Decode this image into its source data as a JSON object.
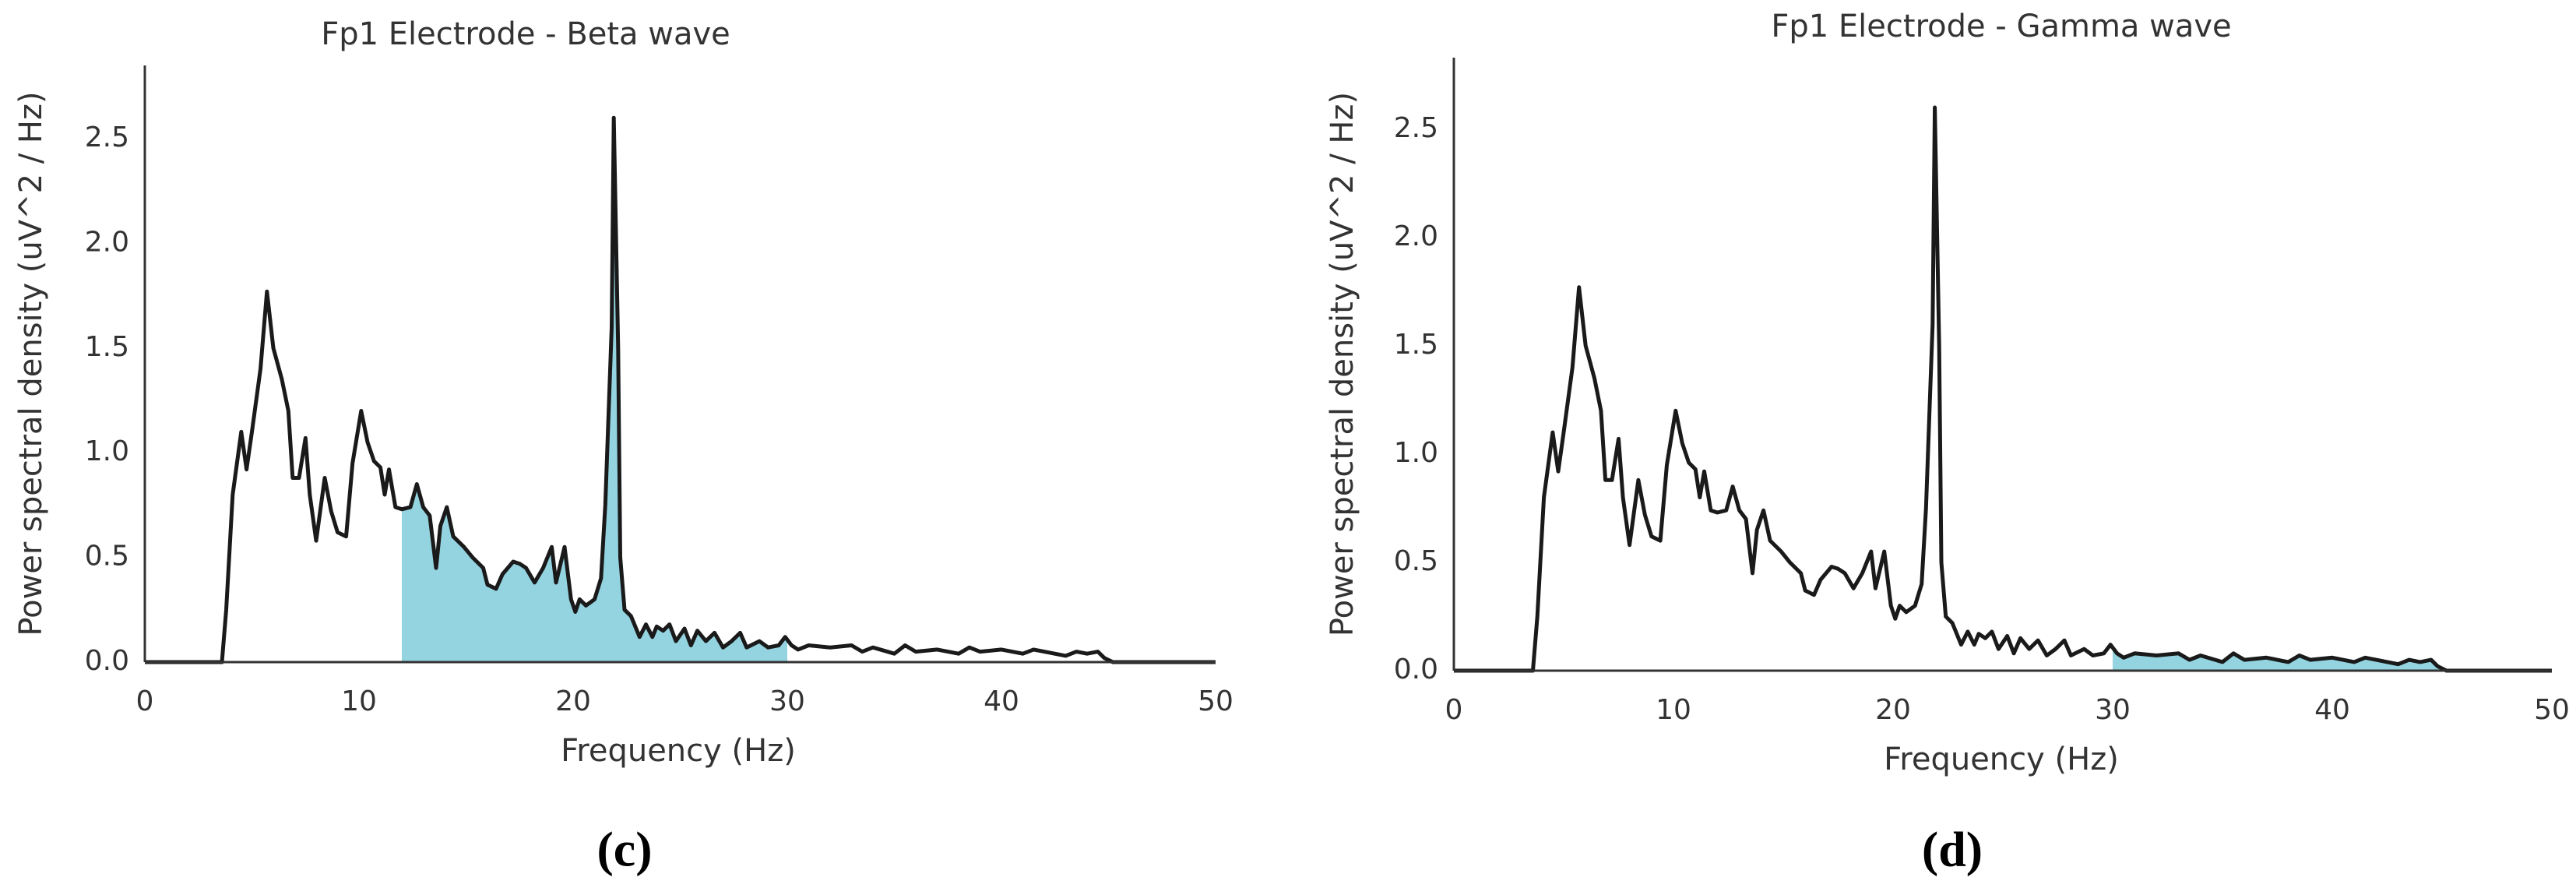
{
  "chart_data": [
    {
      "type": "line",
      "title": "Fp1 Electrode - Beta wave",
      "xlabel": "Frequency (Hz)",
      "ylabel": "Power spectral density (uV^2 / Hz)",
      "caption": "(c)",
      "x": [
        0,
        3.6,
        3.8,
        4.1,
        4.5,
        4.75,
        5.0,
        5.4,
        5.7,
        6.0,
        6.4,
        6.7,
        6.9,
        7.2,
        7.5,
        7.7,
        8.0,
        8.4,
        8.7,
        9.0,
        9.4,
        9.7,
        10.1,
        10.4,
        10.7,
        11.0,
        11.2,
        11.4,
        11.7,
        12.0,
        12.4,
        12.7,
        13.0,
        13.3,
        13.6,
        13.8,
        14.1,
        14.4,
        14.9,
        15.3,
        15.8,
        16.0,
        16.4,
        16.7,
        17.2,
        17.5,
        17.8,
        18.2,
        18.6,
        19.0,
        19.2,
        19.6,
        19.9,
        20.1,
        20.3,
        20.6,
        21.0,
        21.3,
        21.5,
        21.8,
        21.9,
        22.1,
        22.2,
        22.4,
        22.7,
        23.1,
        23.4,
        23.7,
        23.9,
        24.2,
        24.5,
        24.8,
        25.2,
        25.5,
        25.8,
        26.2,
        26.6,
        27.0,
        27.4,
        27.8,
        28.1,
        28.7,
        29.1,
        29.6,
        29.9,
        30.2,
        30.5,
        31,
        32,
        33,
        33.5,
        34,
        35,
        35.5,
        36,
        37,
        38,
        38.5,
        39,
        40,
        41,
        41.5,
        42,
        43,
        43.5,
        44,
        44.5,
        44.8,
        45.2,
        50
      ],
      "values": [
        0,
        0,
        0.25,
        0.8,
        1.1,
        0.92,
        1.1,
        1.4,
        1.77,
        1.5,
        1.35,
        1.2,
        0.88,
        0.88,
        1.07,
        0.8,
        0.58,
        0.88,
        0.72,
        0.62,
        0.6,
        0.95,
        1.2,
        1.05,
        0.96,
        0.93,
        0.8,
        0.92,
        0.74,
        0.73,
        0.74,
        0.85,
        0.74,
        0.7,
        0.45,
        0.65,
        0.74,
        0.6,
        0.55,
        0.5,
        0.45,
        0.37,
        0.35,
        0.42,
        0.48,
        0.47,
        0.45,
        0.38,
        0.45,
        0.55,
        0.38,
        0.55,
        0.3,
        0.24,
        0.3,
        0.27,
        0.3,
        0.4,
        0.75,
        1.6,
        2.6,
        1.5,
        0.5,
        0.25,
        0.22,
        0.12,
        0.18,
        0.12,
        0.17,
        0.15,
        0.18,
        0.1,
        0.16,
        0.08,
        0.15,
        0.1,
        0.14,
        0.07,
        0.1,
        0.14,
        0.07,
        0.1,
        0.07,
        0.08,
        0.12,
        0.08,
        0.06,
        0.08,
        0.07,
        0.08,
        0.05,
        0.07,
        0.04,
        0.08,
        0.05,
        0.06,
        0.04,
        0.07,
        0.05,
        0.06,
        0.04,
        0.06,
        0.05,
        0.03,
        0.05,
        0.04,
        0.05,
        0.02,
        0,
        0
      ],
      "color": "#1a1a1a",
      "band": [
        12,
        30
      ],
      "band_color": "#94d4e0",
      "xlim": [
        0,
        50
      ],
      "xticks": [
        0,
        10,
        20,
        30,
        40,
        50
      ],
      "ylim": [
        0,
        2.85
      ],
      "yticks": [
        {
          "value": 0,
          "label": "0.0"
        },
        0.5,
        {
          "value": 1,
          "label": "1.0"
        },
        1.5,
        {
          "value": 2,
          "label": "2.0"
        },
        2.5
      ],
      "grid": false
    },
    {
      "type": "line",
      "title": "Fp1 Electrode - Gamma wave",
      "xlabel": "Frequency (Hz)",
      "ylabel": "Power spectral density (uV^2 / Hz)",
      "caption": "(d)",
      "x": [
        0,
        3.6,
        3.8,
        4.1,
        4.5,
        4.75,
        5.0,
        5.4,
        5.7,
        6.0,
        6.4,
        6.7,
        6.9,
        7.2,
        7.5,
        7.7,
        8.0,
        8.4,
        8.7,
        9.0,
        9.4,
        9.7,
        10.1,
        10.4,
        10.7,
        11.0,
        11.2,
        11.4,
        11.7,
        12.0,
        12.4,
        12.7,
        13.0,
        13.3,
        13.6,
        13.8,
        14.1,
        14.4,
        14.9,
        15.3,
        15.8,
        16.0,
        16.4,
        16.7,
        17.2,
        17.5,
        17.8,
        18.2,
        18.6,
        19.0,
        19.2,
        19.6,
        19.9,
        20.1,
        20.3,
        20.6,
        21.0,
        21.3,
        21.5,
        21.8,
        21.9,
        22.1,
        22.2,
        22.4,
        22.7,
        23.1,
        23.4,
        23.7,
        23.9,
        24.2,
        24.5,
        24.8,
        25.2,
        25.5,
        25.8,
        26.2,
        26.6,
        27.0,
        27.4,
        27.8,
        28.1,
        28.7,
        29.1,
        29.6,
        29.9,
        30.2,
        30.5,
        31,
        32,
        33,
        33.5,
        34,
        35,
        35.5,
        36,
        37,
        38,
        38.5,
        39,
        40,
        41,
        41.5,
        42,
        43,
        43.5,
        44,
        44.5,
        44.8,
        45.2,
        50
      ],
      "values": [
        0,
        0,
        0.25,
        0.8,
        1.1,
        0.92,
        1.1,
        1.4,
        1.77,
        1.5,
        1.35,
        1.2,
        0.88,
        0.88,
        1.07,
        0.8,
        0.58,
        0.88,
        0.72,
        0.62,
        0.6,
        0.95,
        1.2,
        1.05,
        0.96,
        0.93,
        0.8,
        0.92,
        0.74,
        0.73,
        0.74,
        0.85,
        0.74,
        0.7,
        0.45,
        0.65,
        0.74,
        0.6,
        0.55,
        0.5,
        0.45,
        0.37,
        0.35,
        0.42,
        0.48,
        0.47,
        0.45,
        0.38,
        0.45,
        0.55,
        0.38,
        0.55,
        0.3,
        0.24,
        0.3,
        0.27,
        0.3,
        0.4,
        0.75,
        1.6,
        2.6,
        1.5,
        0.5,
        0.25,
        0.22,
        0.12,
        0.18,
        0.12,
        0.17,
        0.15,
        0.18,
        0.1,
        0.16,
        0.08,
        0.15,
        0.1,
        0.14,
        0.07,
        0.1,
        0.14,
        0.07,
        0.1,
        0.07,
        0.08,
        0.12,
        0.08,
        0.06,
        0.08,
        0.07,
        0.08,
        0.05,
        0.07,
        0.04,
        0.08,
        0.05,
        0.06,
        0.04,
        0.07,
        0.05,
        0.06,
        0.04,
        0.06,
        0.05,
        0.03,
        0.05,
        0.04,
        0.05,
        0.02,
        0,
        0
      ],
      "color": "#1a1a1a",
      "band": [
        30,
        45
      ],
      "band_color": "#94d4e0",
      "xlim": [
        0,
        50
      ],
      "xticks": [
        0,
        10,
        20,
        30,
        40,
        50
      ],
      "ylim": [
        0,
        2.83
      ],
      "yticks": [
        {
          "value": 0,
          "label": "0.0"
        },
        0.5,
        {
          "value": 1,
          "label": "1.0"
        },
        1.5,
        {
          "value": 2,
          "label": "2.0"
        },
        2.5
      ],
      "grid": false
    }
  ]
}
